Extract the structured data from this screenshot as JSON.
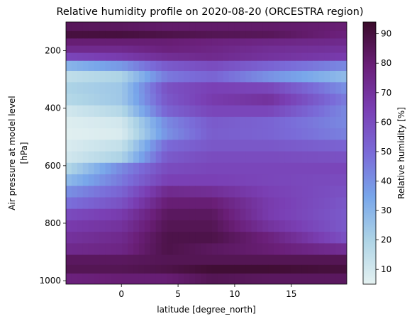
{
  "chart_data": {
    "type": "heatmap",
    "title": "Relative humidity profile on 2020-08-20 (ORCESTRA region)",
    "xlabel": "latitude [degree_north]",
    "ylabel_lines": [
      "Air pressure at model level",
      "[hPa]"
    ],
    "colorbar_label": "Relative humidity [%]",
    "xlim": [
      -4.9,
      19.9
    ],
    "ylim": [
      1012,
      100
    ],
    "y_inverted": true,
    "xticks": [
      0,
      5,
      10,
      15
    ],
    "yticks": [
      200,
      400,
      600,
      800,
      1000
    ],
    "color_range": [
      5,
      94
    ],
    "colorbar_ticks": [
      10,
      20,
      30,
      40,
      50,
      60,
      70,
      80,
      90
    ],
    "colormap_stops": [
      "#e4f1f1",
      "#aed4e6",
      "#78a6ea",
      "#7a6bd8",
      "#7a3fb4",
      "#6a1f78",
      "#3a0b2a"
    ],
    "levels": [
      {
        "p": 118,
        "rh": [
          85,
          84,
          82,
          82,
          82,
          80
        ]
      },
      {
        "p": 145,
        "rh": [
          90,
          90,
          88,
          86,
          85,
          78
        ]
      },
      {
        "p": 170,
        "rh": [
          80,
          80,
          80,
          78,
          76,
          74
        ]
      },
      {
        "p": 195,
        "rh": [
          74,
          74,
          78,
          76,
          72,
          70
        ]
      },
      {
        "p": 220,
        "rh": [
          62,
          66,
          72,
          74,
          70,
          66
        ]
      },
      {
        "p": 250,
        "rh": [
          30,
          38,
          55,
          60,
          52,
          42
        ]
      },
      {
        "p": 290,
        "rh": [
          15,
          20,
          46,
          52,
          40,
          28
        ]
      },
      {
        "p": 330,
        "rh": [
          20,
          24,
          58,
          64,
          62,
          40
        ]
      },
      {
        "p": 370,
        "rh": [
          18,
          24,
          56,
          66,
          70,
          45
        ]
      },
      {
        "p": 410,
        "rh": [
          10,
          18,
          52,
          62,
          62,
          42
        ]
      },
      {
        "p": 450,
        "rh": [
          7,
          10,
          42,
          55,
          52,
          42
        ]
      },
      {
        "p": 490,
        "rh": [
          6,
          8,
          40,
          54,
          52,
          44
        ]
      },
      {
        "p": 530,
        "rh": [
          8,
          14,
          50,
          56,
          56,
          52
        ]
      },
      {
        "p": 570,
        "rh": [
          10,
          20,
          55,
          60,
          60,
          58
        ]
      },
      {
        "p": 610,
        "rh": [
          18,
          42,
          60,
          62,
          62,
          62
        ]
      },
      {
        "p": 650,
        "rh": [
          28,
          46,
          64,
          64,
          62,
          60
        ]
      },
      {
        "p": 690,
        "rh": [
          40,
          52,
          74,
          72,
          64,
          58
        ]
      },
      {
        "p": 730,
        "rh": [
          48,
          58,
          80,
          80,
          66,
          56
        ]
      },
      {
        "p": 770,
        "rh": [
          60,
          66,
          84,
          84,
          66,
          55
        ]
      },
      {
        "p": 810,
        "rh": [
          66,
          70,
          86,
          86,
          70,
          55
        ]
      },
      {
        "p": 850,
        "rh": [
          70,
          74,
          88,
          88,
          78,
          58
        ]
      },
      {
        "p": 890,
        "rh": [
          74,
          76,
          88,
          84,
          80,
          72
        ]
      },
      {
        "p": 930,
        "rh": [
          84,
          84,
          86,
          86,
          86,
          86
        ]
      },
      {
        "p": 960,
        "rh": [
          86,
          86,
          88,
          92,
          92,
          90
        ]
      },
      {
        "p": 990,
        "rh": [
          78,
          80,
          80,
          86,
          84,
          84
        ]
      }
    ],
    "lat_nodes": [
      -4.9,
      0,
      4,
      8,
      13,
      19.9
    ]
  }
}
